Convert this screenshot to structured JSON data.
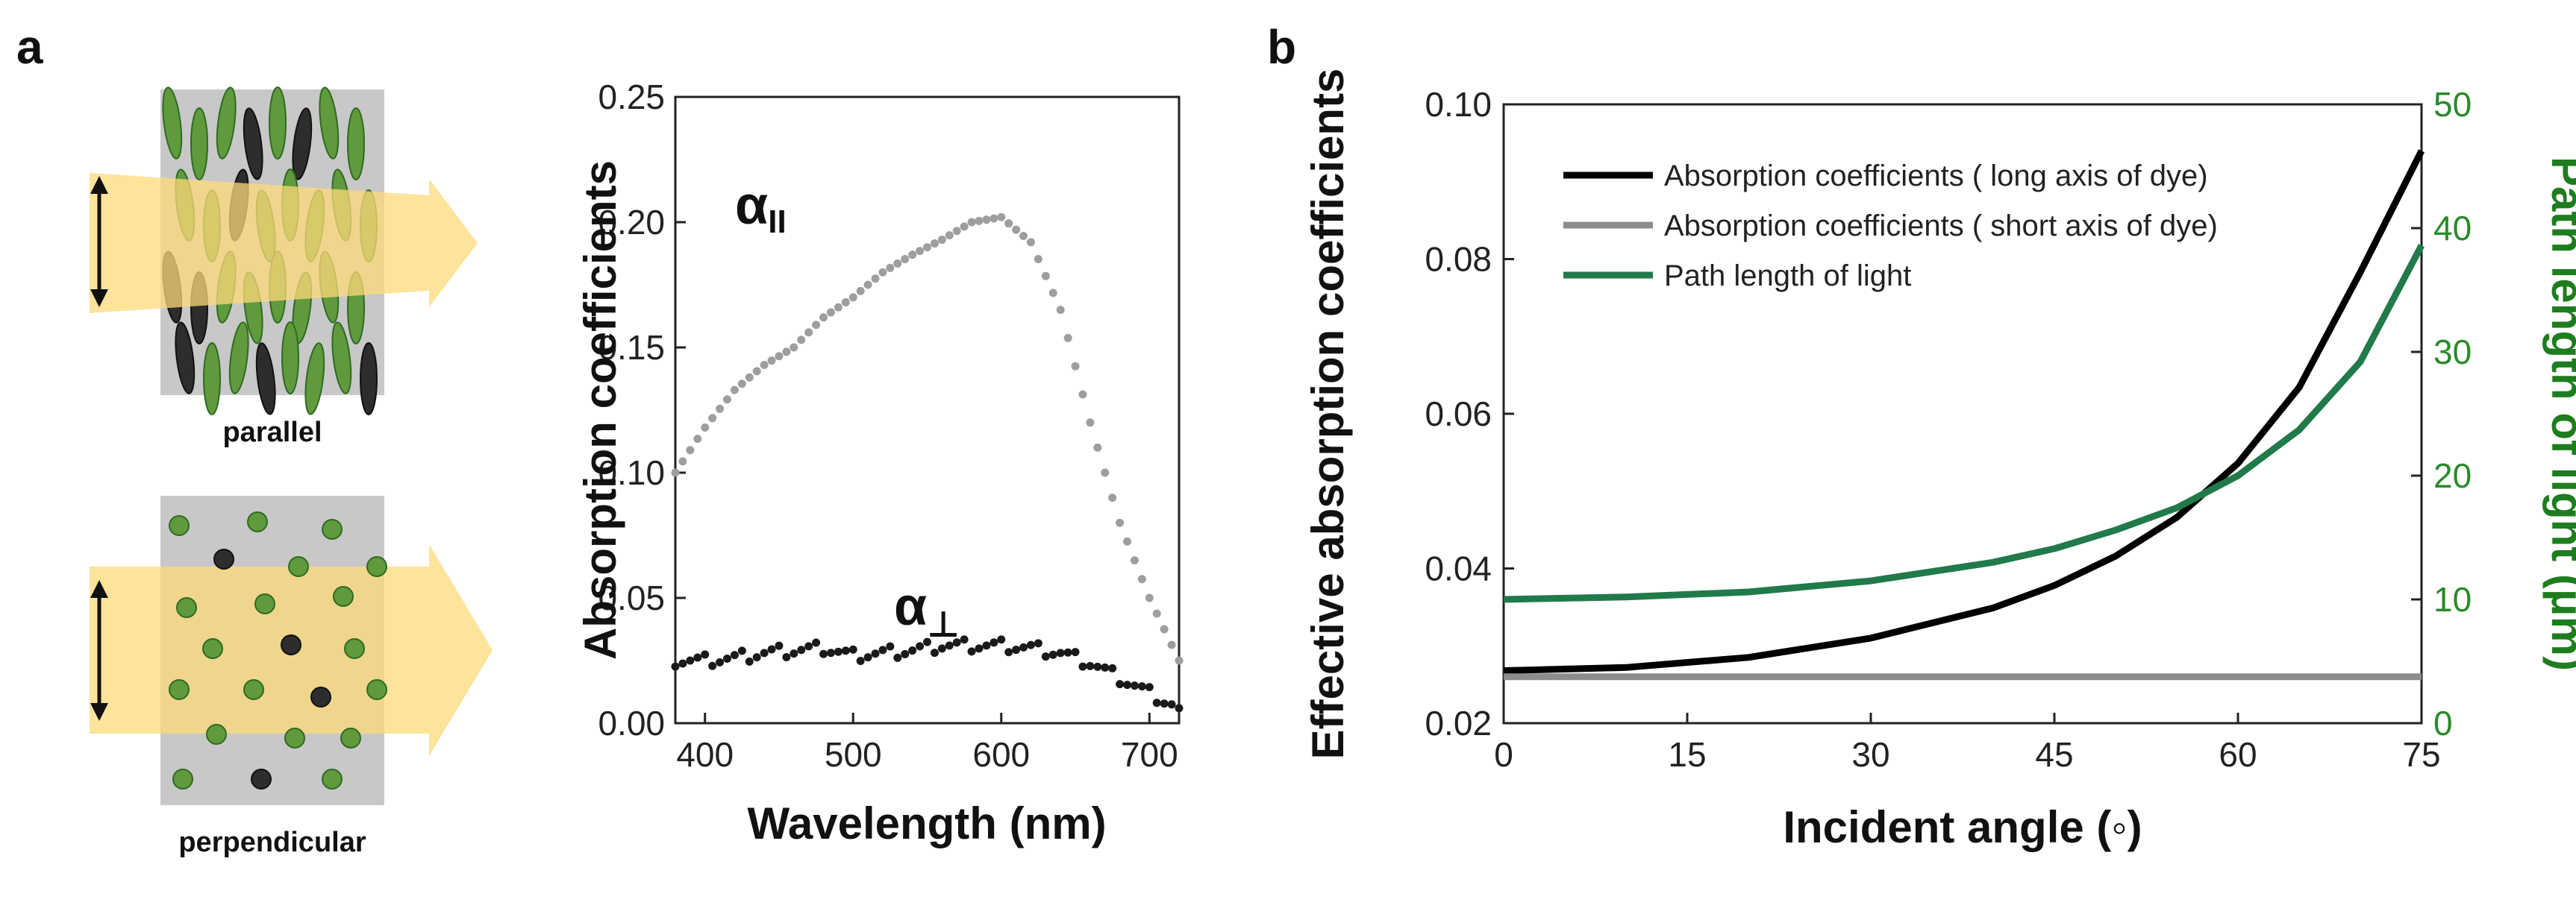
{
  "panels": {
    "a": "a",
    "b": "b"
  },
  "schematic": {
    "parallel_label": "parallel",
    "perpendicular_label": "perpendicular"
  },
  "chart_data": [
    {
      "type": "scatter",
      "panel": "a",
      "xlabel": "Wavelength (nm)",
      "ylabel": "Absorption coefficients",
      "xlim": [
        380,
        720
      ],
      "ylim": [
        0,
        0.25
      ],
      "xticks": [
        "400",
        "500",
        "600",
        "700"
      ],
      "yticks": [
        "0.00",
        "0.05",
        "0.10",
        "0.15",
        "0.20",
        "0.25"
      ],
      "annotations": {
        "parallel_symbol": "α",
        "parallel_sub": "II",
        "perp_symbol": "α",
        "perp_sub": "⊥"
      },
      "series": [
        {
          "name": "α II",
          "color": "#9e9e9e",
          "x": [
            380,
            400,
            420,
            440,
            460,
            480,
            500,
            520,
            540,
            560,
            580,
            600,
            620,
            640,
            660,
            680,
            700,
            720
          ],
          "y": [
            0.1,
            0.118,
            0.133,
            0.143,
            0.15,
            0.162,
            0.17,
            0.18,
            0.187,
            0.193,
            0.2,
            0.202,
            0.192,
            0.165,
            0.12,
            0.08,
            0.05,
            0.025
          ]
        },
        {
          "name": "α ⊥",
          "color": "#1a1a1a",
          "x": [
            380,
            400,
            420,
            440,
            460,
            480,
            500,
            520,
            540,
            560,
            580,
            600,
            620,
            640,
            660,
            680,
            700,
            720
          ],
          "y": [
            0.025,
            0.025,
            0.026,
            0.028,
            0.029,
            0.03,
            0.027,
            0.028,
            0.029,
            0.031,
            0.031,
            0.031,
            0.03,
            0.028,
            0.024,
            0.018,
            0.012,
            0.006
          ]
        }
      ]
    },
    {
      "type": "line",
      "panel": "b",
      "xlabel": "Incident angle (◦)",
      "ylabel": "Effective absorption coefficients",
      "y2label": "Path length of light (μm)",
      "xlim": [
        0,
        75
      ],
      "ylim": [
        0.02,
        0.1
      ],
      "y2lim": [
        0,
        50
      ],
      "xticks": [
        "0",
        "15",
        "30",
        "45",
        "60",
        "75"
      ],
      "yticks": [
        "0.02",
        "0.04",
        "0.06",
        "0.08",
        "0.10"
      ],
      "y2ticks": [
        "0",
        "10",
        "20",
        "30",
        "40",
        "50"
      ],
      "series": [
        {
          "name": "Absorption coefficients ( long axis of dye)",
          "color": "#000000",
          "axis": "left",
          "x": [
            0,
            10,
            20,
            30,
            40,
            45,
            50,
            55,
            60,
            65,
            70,
            75
          ],
          "y": [
            0.0268,
            0.0272,
            0.0285,
            0.031,
            0.0349,
            0.0378,
            0.0416,
            0.0466,
            0.0536,
            0.0634,
            0.0783,
            0.094
          ]
        },
        {
          "name": "Absorption coefficients ( short axis of dye)",
          "color": "#8c8c8c",
          "axis": "left",
          "x": [
            0,
            75
          ],
          "y": [
            0.026,
            0.026
          ]
        },
        {
          "name": "Path length of light",
          "color": "#217a4a",
          "axis": "right",
          "x": [
            0,
            10,
            20,
            30,
            40,
            45,
            50,
            55,
            60,
            65,
            70,
            75
          ],
          "y": [
            10.0,
            10.2,
            10.6,
            11.5,
            13.0,
            14.1,
            15.6,
            17.4,
            20.0,
            23.7,
            29.2,
            38.6
          ]
        }
      ]
    }
  ]
}
